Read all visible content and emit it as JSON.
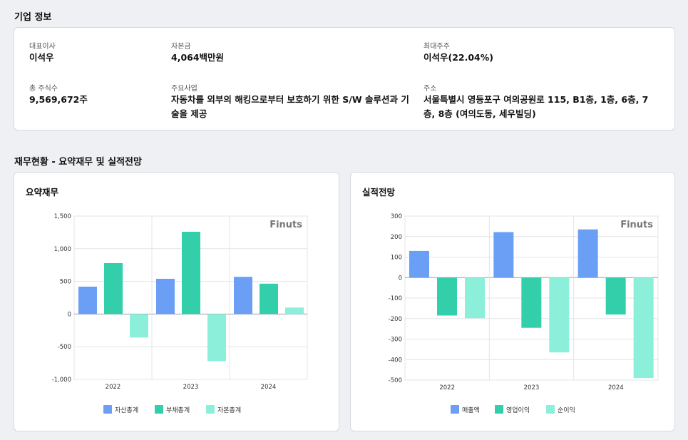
{
  "company_section_title": "기업 정보",
  "company": [
    {
      "label": "대표이사",
      "value": "이석우"
    },
    {
      "label": "자본금",
      "value": "4,064백만원"
    },
    {
      "label": "최대주주",
      "value": "이석우(22.04%)"
    },
    {
      "label": "총 주식수",
      "value": "9,569,672주"
    },
    {
      "label": "주요사업",
      "value": "자동차를 외부의 해킹으로부터 보호하기 위한 S/W 솔루션과 기술을 제공"
    },
    {
      "label": "주소",
      "value": "서울특별시 영등포구 여의공원로 115, B1층, 1층, 6층, 7층, 8층 (여의도동, 세우빌딩)"
    }
  ],
  "finance_section_title": "재무현황 - 요약재무 및 실적전망",
  "colors": {
    "series1": "#6b9ff5",
    "series2": "#33cfab",
    "series3": "#8cefd9"
  },
  "chart_data": [
    {
      "type": "bar",
      "title": "요약재무",
      "watermark": "Finuts",
      "categories": [
        "2022",
        "2023",
        "2024"
      ],
      "series": [
        {
          "name": "자산총계",
          "values": [
            420,
            540,
            570
          ]
        },
        {
          "name": "부채총계",
          "values": [
            780,
            1260,
            465
          ]
        },
        {
          "name": "자본총계",
          "values": [
            -360,
            -720,
            100
          ]
        }
      ],
      "ylim": [
        -1000,
        1500
      ],
      "yticks": [
        1500,
        1000,
        500,
        0,
        -500,
        -1000
      ],
      "ytick_labels": [
        "1,500",
        "1,000",
        "500",
        "0",
        "-500",
        "-1,000"
      ],
      "grid": true,
      "legend": "bottom"
    },
    {
      "type": "bar",
      "title": "실적전망",
      "watermark": "Finuts",
      "categories": [
        "2022",
        "2023",
        "2024"
      ],
      "series": [
        {
          "name": "매출액",
          "values": [
            130,
            222,
            235
          ]
        },
        {
          "name": "영업이익",
          "values": [
            -185,
            -245,
            -180
          ]
        },
        {
          "name": "순이익",
          "values": [
            -198,
            -365,
            -490
          ]
        }
      ],
      "ylim": [
        -500,
        300
      ],
      "yticks": [
        300,
        200,
        100,
        0,
        -100,
        -200,
        -300,
        -400,
        -500
      ],
      "ytick_labels": [
        "300",
        "200",
        "100",
        "0",
        "-100",
        "-200",
        "-300",
        "-400",
        "-500"
      ],
      "grid": true,
      "legend": "bottom"
    }
  ]
}
